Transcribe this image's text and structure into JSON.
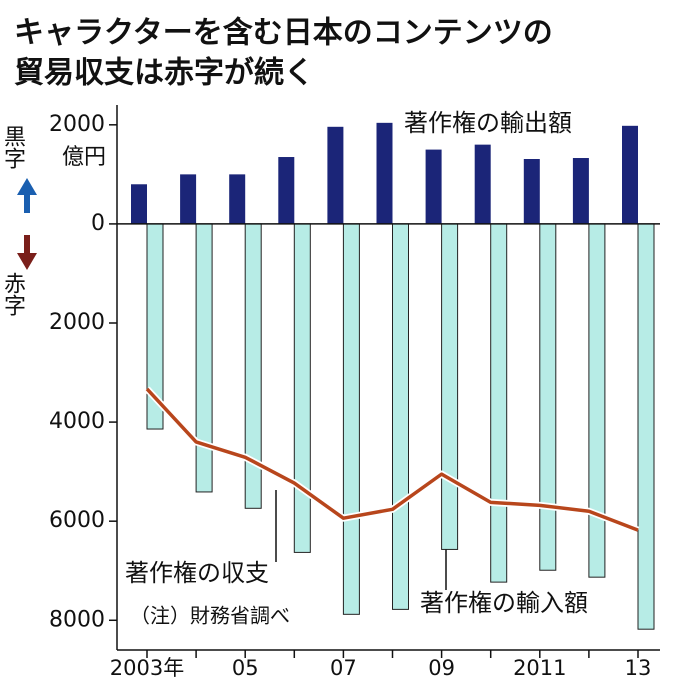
{
  "chart_data": {
    "type": "bar",
    "title": [
      "キャラクターを含む日本のコンテンツの",
      "貿易収支は赤字が続く"
    ],
    "unit": "億円",
    "surplus_label": "黒字",
    "deficit_label": "赤字",
    "note": "（注）財務省調べ",
    "categories": [
      "2003年",
      null,
      "05",
      null,
      "07",
      null,
      "09",
      null,
      "2011",
      null,
      "13"
    ],
    "series": [
      {
        "name": "著作権の輸出額",
        "type": "bar",
        "color": "#1b2578",
        "values": [
          800,
          1000,
          1000,
          1350,
          1960,
          2040,
          1500,
          1600,
          1310,
          1330,
          1980
        ]
      },
      {
        "name": "著作権の輸入額",
        "type": "bar",
        "color": "#b7ece6",
        "values": [
          -4140,
          -5410,
          -5740,
          -6630,
          -7880,
          -7780,
          -6570,
          -7230,
          -6990,
          -7130,
          -8180
        ]
      },
      {
        "name": "著作権の収支",
        "type": "line",
        "color": "#b8461c",
        "values": [
          -3330,
          -4400,
          -4710,
          -5230,
          -5940,
          -5760,
          -5050,
          -5620,
          -5680,
          -5800,
          -6180
        ]
      }
    ],
    "ylim": [
      -8600,
      2400
    ],
    "yticks": [
      2000,
      0,
      {
        "value": -2000,
        "label": "2000"
      },
      {
        "value": -4000,
        "label": "4000"
      },
      {
        "value": -6000,
        "label": "6000"
      },
      {
        "value": -8000,
        "label": "8000"
      }
    ]
  }
}
